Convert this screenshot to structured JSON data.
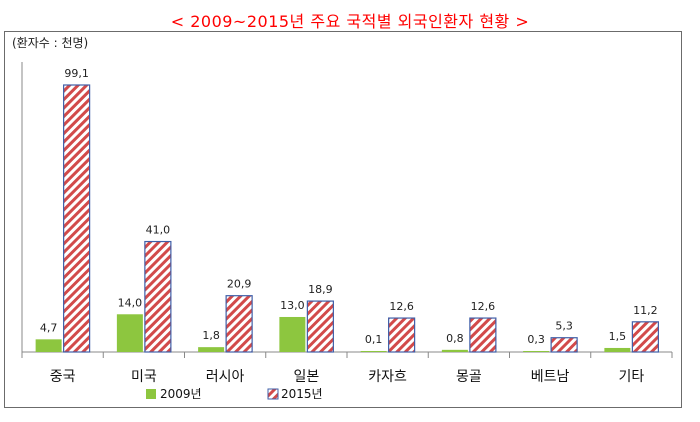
{
  "title": "< 2009~2015년 주요 국적별 외국인환자 현황 >",
  "unit_label": "(환자수 : 천명)",
  "colors": {
    "title": "#ff0000",
    "series_2009": "#8dc63f",
    "series_2015_stripe": "#d24a4a",
    "series_2015_border": "#3f5fa8",
    "axis": "#888888"
  },
  "chart_data": {
    "type": "bar",
    "categories": [
      "중국",
      "미국",
      "러시아",
      "일본",
      "카자흐",
      "몽골",
      "베트남",
      "기타"
    ],
    "series": [
      {
        "name": "2009년",
        "values": [
          4.7,
          14.0,
          1.8,
          13.0,
          0.1,
          0.8,
          0.3,
          1.5
        ],
        "labels": [
          "4,7",
          "14,0",
          "1,8",
          "13,0",
          "0,1",
          "0,8",
          "0,3",
          "1,5"
        ],
        "pattern": "solid"
      },
      {
        "name": "2015년",
        "values": [
          99.1,
          41.0,
          20.9,
          18.9,
          12.6,
          12.6,
          5.3,
          11.2
        ],
        "labels": [
          "99,1",
          "41,0",
          "20,9",
          "18,9",
          "12,6",
          "12,6",
          "5,3",
          "11,2"
        ],
        "pattern": "diagonal-stripes"
      }
    ],
    "ylim": [
      0,
      105
    ],
    "grid": false,
    "legend_position": "bottom"
  }
}
